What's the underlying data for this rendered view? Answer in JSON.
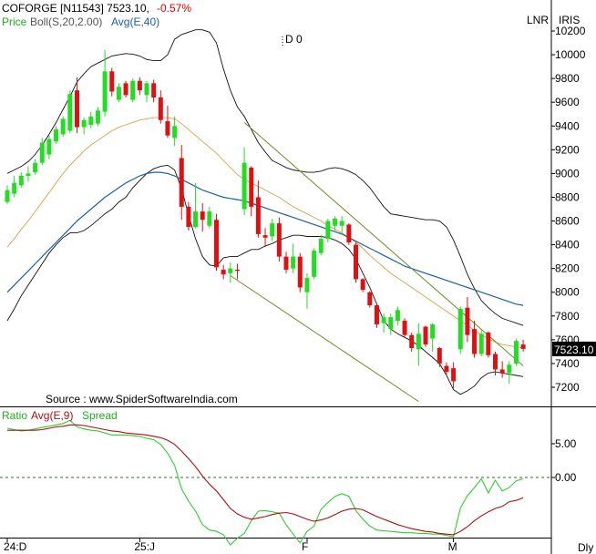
{
  "header": {
    "symbol_line": "COFORGE [N11543] 7523.10,",
    "change": "-0.57%",
    "indicator_price": "Price",
    "indicator_boll": "Boll(S,20,2.00)",
    "indicator_avg": "Avg(E,40)",
    "top_right_1": "LNR",
    "top_right_2": "IRIS",
    "marker": "D 0"
  },
  "source": "Source : www.SpiderSoftwareIndia.com",
  "lower_header": {
    "ratio": "Ratio",
    "avg": "Avg(E,9)",
    "spread": "Spread"
  },
  "footer": {
    "frequency": "Dly"
  },
  "colors": {
    "up": "#22dd22",
    "down": "#dd1111",
    "boll": "#111111",
    "boll_mid": "#d4a24c",
    "avg40": "#1e5fa8",
    "channel": "#6b8e23",
    "ratio_avg": "#aa1111",
    "spread": "#33cc33",
    "text_red": "#dd0000",
    "text_green": "#22aa22",
    "text_blue": "#1e5fa8"
  },
  "chart_data": [
    {
      "type": "candlestick",
      "title": "COFORGE [N11543] 7523.10, -0.57%",
      "ylim": [
        7050,
        10300
      ],
      "yticks": [
        7200,
        7400,
        7600,
        7800,
        8000,
        8200,
        8400,
        8600,
        8800,
        9000,
        9200,
        9400,
        9600,
        9800,
        10000,
        10200
      ],
      "last_price_label": "7523.10",
      "x_labels": [
        {
          "label": "24:D",
          "index": 0
        },
        {
          "label": "25:J",
          "index": 19
        },
        {
          "label": "F",
          "index": 43
        },
        {
          "label": "M",
          "index": 64
        }
      ],
      "candles": [
        [
          8760,
          8900,
          8740,
          8860
        ],
        [
          8830,
          8980,
          8800,
          8920
        ],
        [
          8900,
          9010,
          8880,
          8980
        ],
        [
          8980,
          9060,
          8930,
          9000
        ],
        [
          9010,
          9120,
          8990,
          9090
        ],
        [
          9090,
          9300,
          9070,
          9260
        ],
        [
          9160,
          9320,
          9120,
          9290
        ],
        [
          9270,
          9400,
          9250,
          9370
        ],
        [
          9330,
          9480,
          9310,
          9460
        ],
        [
          9360,
          9700,
          9340,
          9670
        ],
        [
          9700,
          9810,
          9340,
          9390
        ],
        [
          9390,
          9470,
          9330,
          9450
        ],
        [
          9410,
          9520,
          9380,
          9480
        ],
        [
          9420,
          9560,
          9400,
          9530
        ],
        [
          9520,
          10040,
          9480,
          9860
        ],
        [
          9860,
          9890,
          9650,
          9690
        ],
        [
          9620,
          9760,
          9600,
          9730
        ],
        [
          9760,
          9780,
          9640,
          9660
        ],
        [
          9620,
          9800,
          9600,
          9780
        ],
        [
          9780,
          9810,
          9660,
          9700
        ],
        [
          9660,
          9780,
          9600,
          9760
        ],
        [
          9760,
          9790,
          9600,
          9640
        ],
        [
          9640,
          9700,
          9420,
          9450
        ],
        [
          9440,
          9570,
          9300,
          9320
        ],
        [
          9300,
          9480,
          9230,
          9400
        ],
        [
          9130,
          9240,
          8610,
          8720
        ],
        [
          8720,
          8760,
          8520,
          8550
        ],
        [
          8550,
          8920,
          8540,
          8680
        ],
        [
          8680,
          8750,
          8510,
          8610
        ],
        [
          8560,
          8720,
          8540,
          8680
        ],
        [
          8610,
          8660,
          8180,
          8210
        ],
        [
          8190,
          8230,
          8110,
          8150
        ],
        [
          8160,
          8250,
          8080,
          8200
        ],
        [
          8190,
          8240,
          8110,
          8180
        ],
        [
          8700,
          9220,
          8650,
          9090
        ],
        [
          9050,
          9060,
          8640,
          8720
        ],
        [
          8800,
          8940,
          8460,
          8490
        ],
        [
          8480,
          8540,
          8380,
          8460
        ],
        [
          8470,
          8620,
          8430,
          8580
        ],
        [
          8580,
          8630,
          8260,
          8300
        ],
        [
          8300,
          8340,
          8160,
          8190
        ],
        [
          8200,
          8410,
          8160,
          8300
        ],
        [
          8300,
          8330,
          8000,
          8040
        ],
        [
          8000,
          8160,
          7860,
          8120
        ],
        [
          8130,
          8370,
          8110,
          8350
        ],
        [
          8330,
          8480,
          8310,
          8450
        ],
        [
          8450,
          8620,
          8420,
          8600
        ],
        [
          8560,
          8640,
          8520,
          8620
        ],
        [
          8560,
          8640,
          8480,
          8600
        ],
        [
          8570,
          8580,
          8400,
          8420
        ],
        [
          8400,
          8420,
          8080,
          8110
        ],
        [
          8110,
          8120,
          8000,
          8020
        ],
        [
          8000,
          8010,
          7870,
          7890
        ],
        [
          7890,
          7900,
          7700,
          7730
        ],
        [
          7740,
          7820,
          7660,
          7790
        ],
        [
          7690,
          7820,
          7640,
          7790
        ],
        [
          7760,
          7880,
          7720,
          7850
        ],
        [
          7760,
          7780,
          7620,
          7640
        ],
        [
          7640,
          7660,
          7500,
          7530
        ],
        [
          7520,
          7740,
          7380,
          7650
        ],
        [
          7710,
          7720,
          7540,
          7560
        ],
        [
          7610,
          7740,
          7500,
          7730
        ],
        [
          7530,
          7540,
          7370,
          7400
        ],
        [
          7380,
          7410,
          7300,
          7330
        ],
        [
          7360,
          7410,
          7190,
          7250
        ],
        [
          7520,
          7880,
          7480,
          7860
        ],
        [
          7870,
          7960,
          7580,
          7640
        ],
        [
          7690,
          7760,
          7450,
          7480
        ],
        [
          7480,
          7680,
          7460,
          7650
        ],
        [
          7660,
          7670,
          7450,
          7470
        ],
        [
          7480,
          7500,
          7300,
          7350
        ],
        [
          7350,
          7420,
          7280,
          7320
        ],
        [
          7320,
          7420,
          7230,
          7390
        ],
        [
          7400,
          7610,
          7380,
          7590
        ],
        [
          7560,
          7600,
          7500,
          7523
        ]
      ],
      "series": [
        {
          "name": "Boll Upper",
          "values": [
            9000,
            9030,
            9060,
            9100,
            9160,
            9240,
            9330,
            9430,
            9540,
            9650,
            9770,
            9840,
            9900,
            9930,
            9960,
            9990,
            10000,
            10010,
            10005,
            9990,
            9960,
            9950,
            9950,
            10000,
            10130,
            10170,
            10190,
            10210,
            10210,
            10190,
            10100,
            9880,
            9700,
            9560,
            9480,
            9370,
            9260,
            9180,
            9110,
            9080,
            9050,
            9030,
            9020,
            9010,
            9010,
            9020,
            9040,
            9050,
            9040,
            9020,
            8990,
            8940,
            8880,
            8800,
            8720,
            8660,
            8650,
            8640,
            8630,
            8620,
            8610,
            8610,
            8600,
            8550,
            8440,
            8300,
            8150,
            8030,
            7930,
            7870,
            7820,
            7780,
            7760,
            7740,
            7720
          ]
        },
        {
          "name": "Boll Mid",
          "values": [
            8380,
            8450,
            8530,
            8600,
            8680,
            8760,
            8840,
            8920,
            9000,
            9070,
            9130,
            9190,
            9240,
            9280,
            9320,
            9360,
            9390,
            9410,
            9430,
            9450,
            9460,
            9470,
            9470,
            9470,
            9460,
            9420,
            9370,
            9320,
            9270,
            9220,
            9170,
            9110,
            9050,
            8990,
            8950,
            8920,
            8890,
            8860,
            8830,
            8800,
            8760,
            8720,
            8690,
            8660,
            8630,
            8600,
            8560,
            8530,
            8500,
            8460,
            8420,
            8370,
            8310,
            8260,
            8210,
            8160,
            8120,
            8080,
            8040,
            8000,
            7960,
            7920,
            7880,
            7840,
            7800,
            7760,
            7720,
            7680,
            7640,
            7610,
            7580,
            7560,
            7550,
            7540,
            7530
          ]
        },
        {
          "name": "Boll Lower",
          "values": [
            7760,
            7860,
            7970,
            8060,
            8150,
            8240,
            8330,
            8400,
            8460,
            8500,
            8500,
            8520,
            8560,
            8610,
            8660,
            8700,
            8760,
            8800,
            8880,
            8940,
            9000,
            9040,
            9060,
            9070,
            9030,
            8870,
            8650,
            8450,
            8300,
            8230,
            8220,
            8290,
            8300,
            8300,
            8330,
            8360,
            8360,
            8390,
            8410,
            8440,
            8460,
            8480,
            8480,
            8470,
            8470,
            8470,
            8460,
            8440,
            8410,
            8360,
            8280,
            8160,
            8040,
            7900,
            7760,
            7690,
            7650,
            7620,
            7590,
            7550,
            7500,
            7450,
            7400,
            7300,
            7180,
            7140,
            7170,
            7210,
            7280,
            7320,
            7330,
            7320,
            7310,
            7300,
            7290
          ]
        },
        {
          "name": "Avg(E,40)",
          "values": [
            8000,
            8060,
            8120,
            8180,
            8240,
            8300,
            8360,
            8420,
            8480,
            8540,
            8600,
            8650,
            8700,
            8750,
            8800,
            8840,
            8880,
            8920,
            8950,
            8980,
            9000,
            9010,
            9010,
            9000,
            8980,
            8950,
            8920,
            8890,
            8860,
            8840,
            8820,
            8800,
            8790,
            8780,
            8770,
            8750,
            8730,
            8710,
            8690,
            8670,
            8650,
            8630,
            8610,
            8590,
            8570,
            8550,
            8530,
            8510,
            8490,
            8460,
            8430,
            8400,
            8370,
            8340,
            8310,
            8280,
            8250,
            8220,
            8200,
            8180,
            8160,
            8140,
            8120,
            8100,
            8080,
            8060,
            8040,
            8020,
            8000,
            7980,
            7960,
            7940,
            7920,
            7900,
            7890
          ]
        }
      ],
      "channel_lines": [
        {
          "name": "channel upper",
          "from": [
            34,
            9430
          ],
          "to": [
            74,
            7380
          ]
        },
        {
          "name": "channel lower",
          "from": [
            32,
            8140
          ],
          "to": [
            59,
            7080
          ]
        }
      ]
    },
    {
      "type": "line",
      "title": "Ratio  Avg(E,9)  Spread",
      "ylim": [
        -12,
        11
      ],
      "yticks": [
        5.0,
        0.0
      ],
      "ytick_labels": [
        "5.00",
        "0.00"
      ],
      "zero_line": 0,
      "series": [
        {
          "name": "Spread",
          "values": [
            7.3,
            7.1,
            6.9,
            7.0,
            7.2,
            7.4,
            7.6,
            7.8,
            8.0,
            8.5,
            7.5,
            7.2,
            7.0,
            6.9,
            6.6,
            6.3,
            6.3,
            6.3,
            6.2,
            6.1,
            5.8,
            5.6,
            4.9,
            3.6,
            1.8,
            -1.7,
            -3.5,
            -5.0,
            -7.0,
            -7.8,
            -8.0,
            -8.5,
            -10.0,
            -9.0,
            -8.3,
            -6.4,
            -5.0,
            -4.9,
            -5.1,
            -5.3,
            -7.0,
            -8.4,
            -9.7,
            -8.0,
            -7.2,
            -4.7,
            -3.7,
            -2.8,
            -2.4,
            -2.8,
            -4.9,
            -6.2,
            -7.2,
            -7.8,
            -7.9,
            -8.0,
            -8.1,
            -8.2,
            -8.2,
            -8.3,
            -8.3,
            -8.4,
            -8.4,
            -8.6,
            -8.8,
            -4.5,
            -2.7,
            -1.5,
            -0.2,
            -2.3,
            -0.4,
            -2.0,
            -1.5,
            -0.5,
            -0.2
          ]
        },
        {
          "name": "Avg(E,9)",
          "values": [
            7.0,
            7.0,
            7.0,
            7.0,
            7.0,
            7.1,
            7.3,
            7.5,
            7.6,
            7.8,
            7.8,
            7.7,
            7.5,
            7.3,
            7.1,
            6.9,
            6.8,
            6.6,
            6.5,
            6.4,
            6.3,
            6.1,
            5.9,
            5.5,
            4.9,
            3.9,
            2.8,
            1.6,
            0.2,
            -1.0,
            -2.0,
            -3.3,
            -4.6,
            -5.4,
            -5.9,
            -6.2,
            -6.0,
            -5.8,
            -5.5,
            -5.3,
            -5.2,
            -5.4,
            -5.8,
            -6.2,
            -6.5,
            -6.3,
            -6.0,
            -5.5,
            -5.0,
            -4.7,
            -4.6,
            -4.8,
            -5.3,
            -5.8,
            -6.2,
            -6.6,
            -7.0,
            -7.3,
            -7.6,
            -7.8,
            -8.0,
            -8.1,
            -8.3,
            -8.4,
            -8.5,
            -8.0,
            -7.3,
            -6.4,
            -5.7,
            -5.1,
            -4.6,
            -4.3,
            -3.6,
            -3.4,
            -3.0
          ]
        }
      ]
    }
  ]
}
